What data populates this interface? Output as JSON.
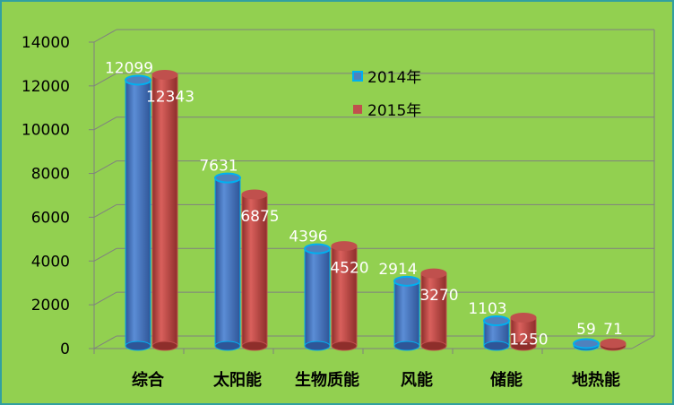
{
  "chart_data": {
    "type": "bar",
    "categories": [
      "综合",
      "太阳能",
      "生物质能",
      "风能",
      "储能",
      "地热能"
    ],
    "series": [
      {
        "name": "2014年",
        "values": [
          12099,
          7631,
          4396,
          2914,
          1103,
          59
        ],
        "color": "#4F81BD",
        "border": "#00B0F0"
      },
      {
        "name": "2015年",
        "values": [
          12343,
          6875,
          4520,
          3270,
          1250,
          71
        ],
        "color": "#C0504D",
        "border": "#C0504D"
      }
    ],
    "ylim": [
      0,
      14000
    ],
    "yticks": [
      "0",
      "2000",
      "4000",
      "6000",
      "8000",
      "10000",
      "12000",
      "14000"
    ],
    "grid": true,
    "legend": "top-center",
    "background": "#92D050",
    "frame_color": "#31A0A0"
  }
}
